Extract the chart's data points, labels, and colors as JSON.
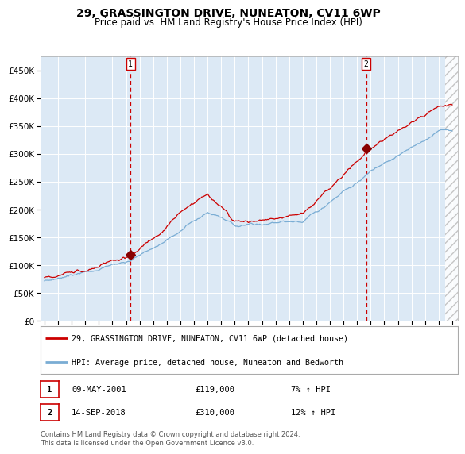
{
  "title": "29, GRASSINGTON DRIVE, NUNEATON, CV11 6WP",
  "subtitle": "Price paid vs. HM Land Registry's House Price Index (HPI)",
  "title_fontsize": 10,
  "subtitle_fontsize": 8.5,
  "background_color": "#ffffff",
  "plot_bg_color": "#dce9f5",
  "legend_label_red": "29, GRASSINGTON DRIVE, NUNEATON, CV11 6WP (detached house)",
  "legend_label_blue": "HPI: Average price, detached house, Nuneaton and Bedworth",
  "footer": "Contains HM Land Registry data © Crown copyright and database right 2024.\nThis data is licensed under the Open Government Licence v3.0.",
  "purchase1_date": "09-MAY-2001",
  "purchase1_price": 119000,
  "purchase1_label": "1",
  "purchase1_pct": "7% ↑ HPI",
  "purchase2_date": "14-SEP-2018",
  "purchase2_price": 310000,
  "purchase2_label": "2",
  "purchase2_pct": "12% ↑ HPI",
  "ylim": [
    0,
    475000
  ],
  "yticks": [
    0,
    50000,
    100000,
    150000,
    200000,
    250000,
    300000,
    350000,
    400000,
    450000
  ],
  "start_year": 1995,
  "end_year": 2025,
  "red_color": "#cc0000",
  "blue_color": "#7aadd4",
  "marker_color": "#880000",
  "vline_color": "#cc0000",
  "grid_color": "#ffffff",
  "hatch_color": "#bbbbbb"
}
